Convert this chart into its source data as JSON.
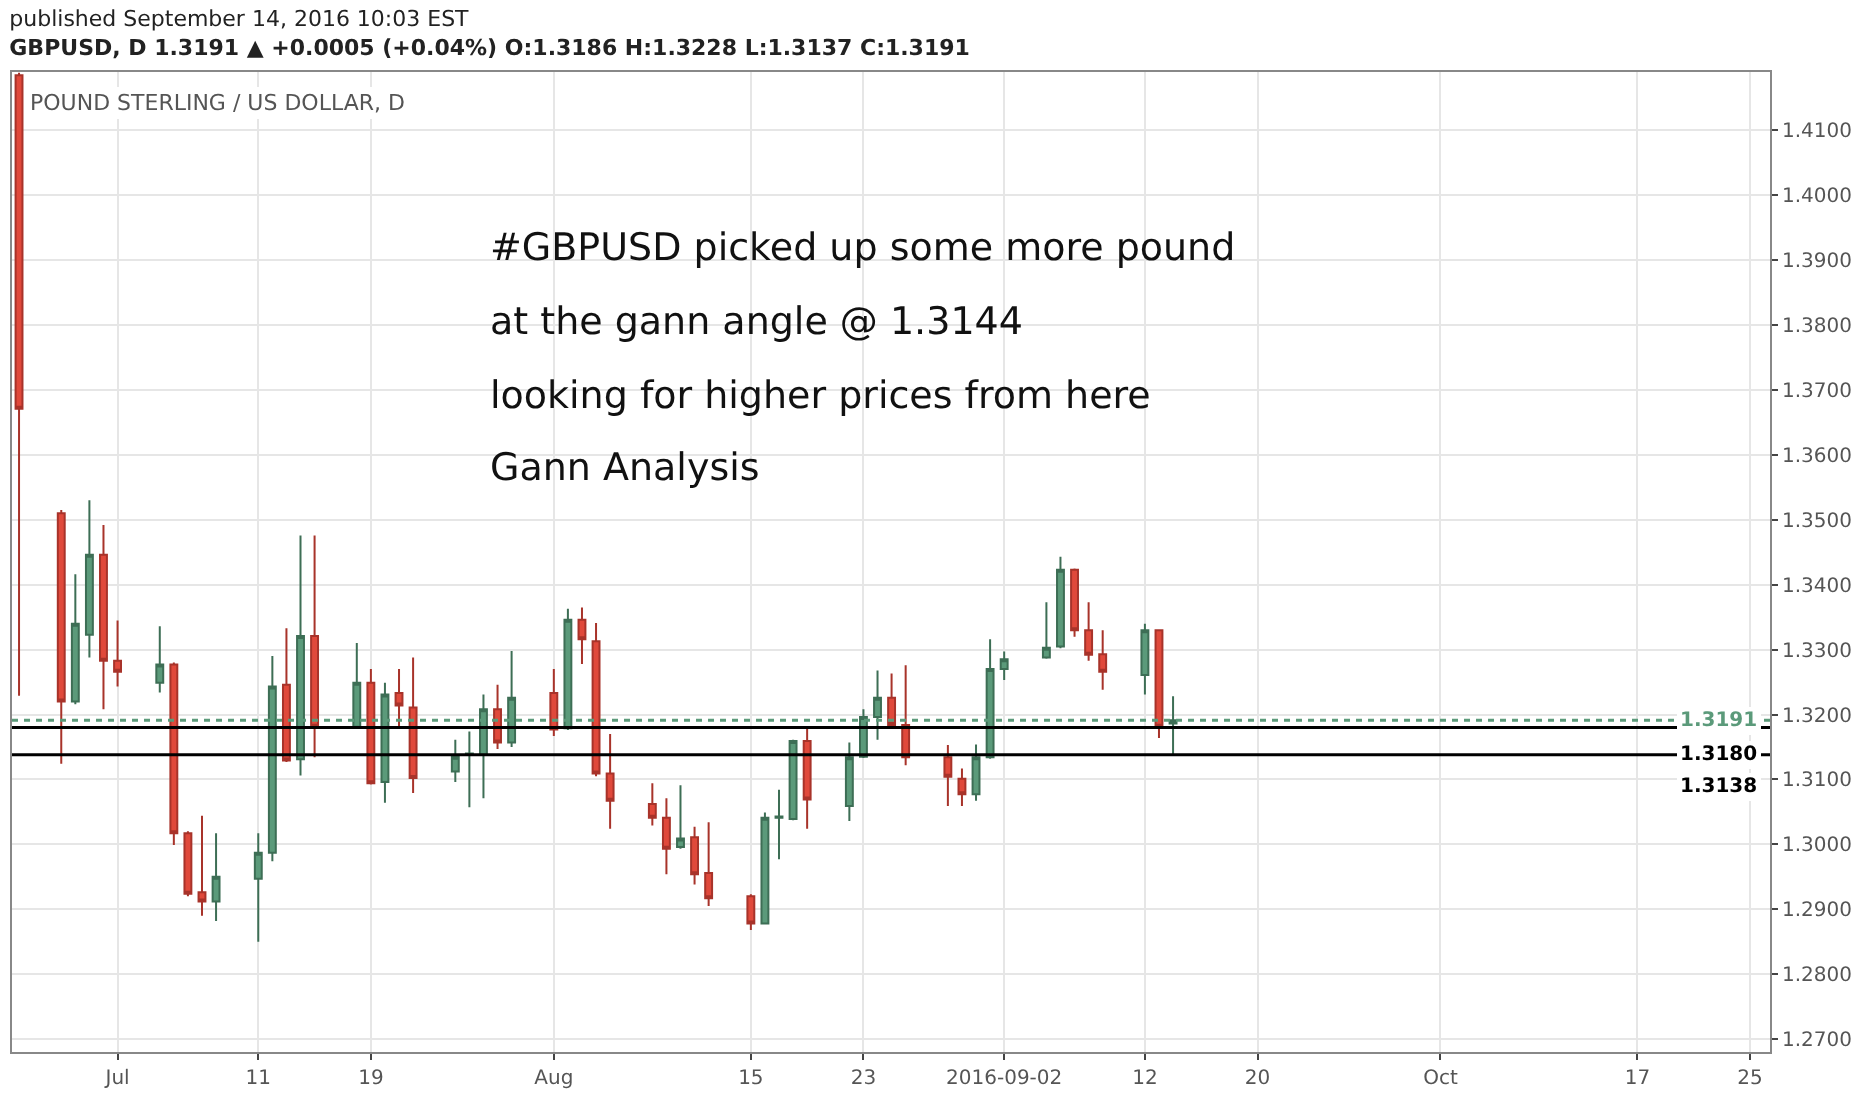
{
  "chart_data": {
    "type": "candlestick",
    "title": "published September 14, 2016 10:03 EST",
    "subtitle": "GBPUSD, D 1.3191 ▲ +0.0005 (+0.04%) O:1.3186 H:1.3228 L:1.3137 C:1.3191",
    "annotations": [
      "POUND STERLING / US DOLLAR, D",
      "#GBPUSD picked up some more pound",
      "at the gann angle @ 1.3144",
      "looking for higher prices from here",
      "Gann Analysis"
    ],
    "x": [
      "2016-06-24",
      "2016-06-27",
      "2016-06-28",
      "2016-06-29",
      "2016-06-30",
      "2016-07-01",
      "2016-07-04",
      "2016-07-05",
      "2016-07-06",
      "2016-07-07",
      "2016-07-08",
      "2016-07-11",
      "2016-07-12",
      "2016-07-13",
      "2016-07-14",
      "2016-07-15",
      "2016-07-18",
      "2016-07-19",
      "2016-07-20",
      "2016-07-21",
      "2016-07-22",
      "2016-07-25",
      "2016-07-26",
      "2016-07-27",
      "2016-07-28",
      "2016-07-29",
      "2016-08-01",
      "2016-08-02",
      "2016-08-03",
      "2016-08-04",
      "2016-08-05",
      "2016-08-08",
      "2016-08-09",
      "2016-08-10",
      "2016-08-11",
      "2016-08-12",
      "2016-08-15",
      "2016-08-16",
      "2016-08-17",
      "2016-08-18",
      "2016-08-19",
      "2016-08-22",
      "2016-08-23",
      "2016-08-24",
      "2016-08-25",
      "2016-08-26",
      "2016-08-29",
      "2016-08-30",
      "2016-08-31",
      "2016-09-01",
      "2016-09-02",
      "2016-09-05",
      "2016-09-06",
      "2016-09-07",
      "2016-09-08",
      "2016-09-09",
      "2016-09-12",
      "2016-09-13",
      "2016-09-14"
    ],
    "ohlc": [
      [
        1.4185,
        1.4189,
        1.3229,
        1.3671
      ],
      [
        1.351,
        1.3515,
        1.3124,
        1.322
      ],
      [
        1.322,
        1.3416,
        1.3216,
        1.334
      ],
      [
        1.3323,
        1.353,
        1.3288,
        1.3446
      ],
      [
        1.3446,
        1.3492,
        1.3208,
        1.3283
      ],
      [
        1.3283,
        1.3345,
        1.3243,
        1.3266
      ],
      [
        1.3249,
        1.3336,
        1.3234,
        1.3277
      ],
      [
        1.3277,
        1.328,
        1.2999,
        1.3017
      ],
      [
        1.3017,
        1.302,
        1.292,
        1.2924
      ],
      [
        1.2926,
        1.3044,
        1.289,
        1.2912
      ],
      [
        1.2912,
        1.3017,
        1.2882,
        1.295
      ],
      [
        1.2947,
        1.3017,
        1.285,
        1.2987
      ],
      [
        1.2987,
        1.329,
        1.2974,
        1.3243
      ],
      [
        1.3246,
        1.3333,
        1.3127,
        1.3129
      ],
      [
        1.3131,
        1.3476,
        1.3106,
        1.3321
      ],
      [
        1.3321,
        1.3476,
        1.3134,
        1.3181
      ],
      [
        1.3181,
        1.331,
        1.318,
        1.3249
      ],
      [
        1.3249,
        1.327,
        1.3092,
        1.3094
      ],
      [
        1.3096,
        1.3249,
        1.3064,
        1.3231
      ],
      [
        1.3233,
        1.327,
        1.3181,
        1.3214
      ],
      [
        1.3211,
        1.3288,
        1.3079,
        1.3102
      ],
      [
        1.3112,
        1.3161,
        1.3096,
        1.3135
      ],
      [
        1.3138,
        1.3174,
        1.3057,
        1.314
      ],
      [
        1.3138,
        1.3231,
        1.3071,
        1.3208
      ],
      [
        1.3208,
        1.3246,
        1.3147,
        1.3157
      ],
      [
        1.3157,
        1.3298,
        1.315,
        1.3226
      ],
      [
        1.3233,
        1.327,
        1.3167,
        1.3177
      ],
      [
        1.3179,
        1.3363,
        1.3176,
        1.3346
      ],
      [
        1.3346,
        1.3365,
        1.3278,
        1.3316
      ],
      [
        1.3313,
        1.3341,
        1.3105,
        1.3109
      ],
      [
        1.3109,
        1.317,
        1.3024,
        1.3067
      ],
      [
        1.3062,
        1.3094,
        1.3029,
        1.3041
      ],
      [
        1.3041,
        1.3071,
        1.2954,
        1.2993
      ],
      [
        1.2996,
        1.3091,
        1.2993,
        1.3009
      ],
      [
        1.3011,
        1.3027,
        1.2938,
        1.2954
      ],
      [
        1.2956,
        1.3034,
        1.2905,
        1.2917
      ],
      [
        1.292,
        1.2923,
        1.2868,
        1.2878
      ],
      [
        1.2878,
        1.3049,
        1.2878,
        1.3041
      ],
      [
        1.3041,
        1.3084,
        1.2977,
        1.3043
      ],
      [
        1.3039,
        1.3161,
        1.3037,
        1.3159
      ],
      [
        1.3159,
        1.3179,
        1.3024,
        1.3069
      ],
      [
        1.3059,
        1.3157,
        1.3036,
        1.3134
      ],
      [
        1.3135,
        1.3208,
        1.3133,
        1.3196
      ],
      [
        1.3196,
        1.3268,
        1.3161,
        1.3226
      ],
      [
        1.3226,
        1.3263,
        1.3181,
        1.3184
      ],
      [
        1.3184,
        1.3276,
        1.3122,
        1.3134
      ],
      [
        1.3134,
        1.3153,
        1.3059,
        1.3104
      ],
      [
        1.3101,
        1.3117,
        1.3059,
        1.3077
      ],
      [
        1.3077,
        1.3154,
        1.3067,
        1.3134
      ],
      [
        1.3134,
        1.3316,
        1.3132,
        1.327
      ],
      [
        1.327,
        1.3297,
        1.3253,
        1.3285
      ],
      [
        1.3288,
        1.3373,
        1.3286,
        1.3303
      ],
      [
        1.3305,
        1.3443,
        1.3302,
        1.3423
      ],
      [
        1.3423,
        1.3425,
        1.332,
        1.333
      ],
      [
        1.333,
        1.3373,
        1.3283,
        1.3292
      ],
      [
        1.3293,
        1.333,
        1.3238,
        1.3266
      ],
      [
        1.3261,
        1.334,
        1.3231,
        1.333
      ],
      [
        1.333,
        1.3331,
        1.3164,
        1.3181
      ],
      [
        1.3186,
        1.3228,
        1.3137,
        1.3191
      ]
    ],
    "xlim": [
      "2016-06-23T12:00",
      "2016-10-26T10:00"
    ],
    "xticks": [
      {
        "value": "2016-07-01",
        "label": "Jul"
      },
      {
        "value": "2016-07-11",
        "label": "11"
      },
      {
        "value": "2016-07-19",
        "label": "19"
      },
      {
        "value": "2016-08-01",
        "label": "Aug"
      },
      {
        "value": "2016-08-15",
        "label": "15"
      },
      {
        "value": "2016-08-23",
        "label": "23"
      },
      {
        "value": "2016-09-02",
        "label": "2016-09-02"
      },
      {
        "value": "2016-09-12",
        "label": "12"
      },
      {
        "value": "2016-09-20",
        "label": "20"
      },
      {
        "value": "2016-10-03",
        "label": "Oct"
      },
      {
        "value": "2016-10-17",
        "label": "17"
      },
      {
        "value": "2016-10-25",
        "label": "25"
      }
    ],
    "ylim": [
      1.268,
      1.419
    ],
    "yticks": [
      {
        "value": 1.27,
        "label": "1.2700"
      },
      {
        "value": 1.28,
        "label": "1.2800"
      },
      {
        "value": 1.29,
        "label": "1.2900"
      },
      {
        "value": 1.3,
        "label": "1.3000"
      },
      {
        "value": 1.31,
        "label": "1.3100"
      },
      {
        "value": 1.32,
        "label": "1.3200"
      },
      {
        "value": 1.33,
        "label": "1.3300"
      },
      {
        "value": 1.34,
        "label": "1.3400"
      },
      {
        "value": 1.35,
        "label": "1.3500"
      },
      {
        "value": 1.36,
        "label": "1.3600"
      },
      {
        "value": 1.37,
        "label": "1.3700"
      },
      {
        "value": 1.38,
        "label": "1.3800"
      },
      {
        "value": 1.39,
        "label": "1.3900"
      },
      {
        "value": 1.4,
        "label": "1.4000"
      },
      {
        "value": 1.41,
        "label": "1.4100"
      }
    ],
    "ref_lines": [
      {
        "axis": "y",
        "value": 1.3191,
        "label": "1.3191",
        "color": "#5b9a7a",
        "line_style": "dotted"
      },
      {
        "axis": "y",
        "value": 1.318,
        "label": "1.3180",
        "color": "#000000",
        "line_style": "solid"
      },
      {
        "axis": "y",
        "value": 1.3138,
        "label": "1.3138",
        "color": "#000000",
        "line_style": "solid"
      }
    ],
    "grid": true,
    "legend": false
  }
}
